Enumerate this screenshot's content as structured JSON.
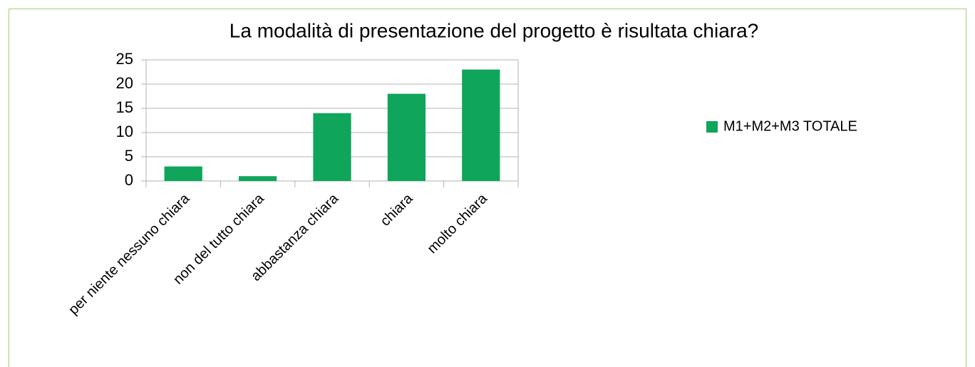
{
  "chart_data": {
    "type": "bar",
    "title": "La modalità di presentazione del progetto è risultata chiara?",
    "categories": [
      "per niente nessuno chiara",
      "non del tutto chiara",
      "abbastanza chiara",
      "chiara",
      "molto chiara"
    ],
    "series": [
      {
        "name": "M1+M2+M3 TOTALE",
        "color": "#0fa55a",
        "values": [
          3,
          1,
          14,
          18,
          23
        ]
      }
    ],
    "ylim": [
      0,
      25
    ],
    "yticks": [
      0,
      5,
      10,
      15,
      20,
      25
    ],
    "grid": true,
    "legend": "right"
  }
}
